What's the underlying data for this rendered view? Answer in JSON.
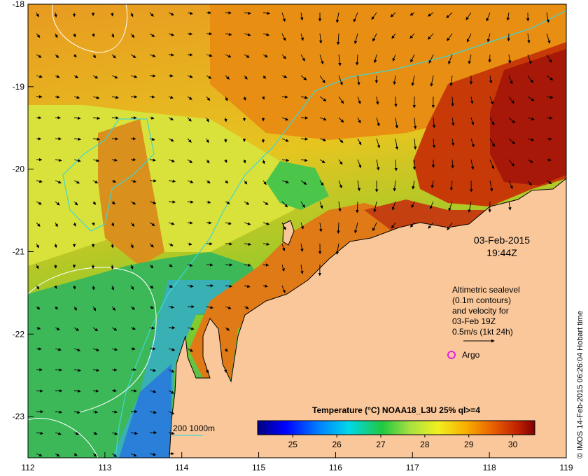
{
  "map": {
    "lon_ticks": [
      "112",
      "113",
      "114",
      "115",
      "116",
      "117",
      "118",
      "119"
    ],
    "lat_ticks": [
      "-18",
      "-19",
      "-20",
      "-21",
      "-22",
      "-23"
    ],
    "lon_range": [
      112,
      119
    ],
    "lat_range": [
      -23.5,
      -18
    ],
    "date_line1": "03-Feb-2015",
    "date_line2": "19:44Z",
    "altimetry_lines": [
      "Altimetric sealevel",
      "(0.1m contours)",
      "and velocity for",
      "03-Feb 19Z",
      "0.5m/s (1kt 24h)"
    ],
    "argo_label": "Argo",
    "isobath_label": "200  1000m",
    "side_credit": "© IMOS 14-Feb-2015 06:26:04 Hobart time",
    "colors": {
      "land": "#f9c79a",
      "bathymetry_line": "#3ed6d6",
      "argo_marker": "#e020e0",
      "contour": "#ffffff"
    }
  },
  "colorbar": {
    "title": "Temperature (°C) NOAA18_L3U 25% ql>=4",
    "ticks": [
      "25",
      "26",
      "27",
      "28",
      "29",
      "30"
    ],
    "range": [
      24.2,
      30.5
    ]
  }
}
